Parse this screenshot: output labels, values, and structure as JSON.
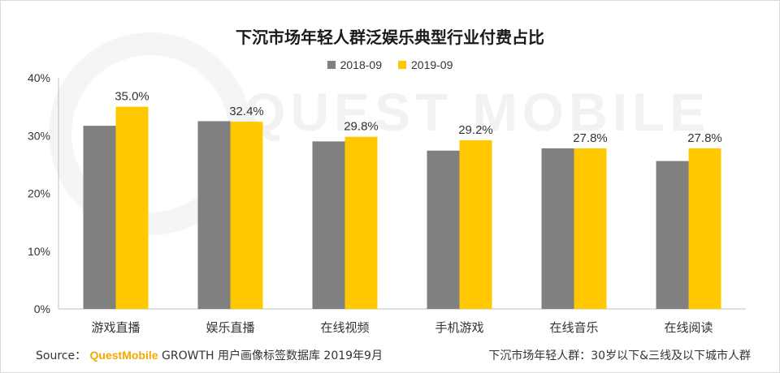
{
  "title": "下沉市场年轻人群泛娱乐典型行业付费占比",
  "watermark": "QUEST MOBILE",
  "colors": {
    "series1": "#808080",
    "series2": "#ffc800",
    "axis": "#bfbfbf"
  },
  "chart_data": {
    "type": "bar",
    "title": "下沉市场年轻人群泛娱乐典型行业付费占比",
    "categories": [
      "游戏直播",
      "娱乐直播",
      "在线视频",
      "手机游戏",
      "在线音乐",
      "在线阅读"
    ],
    "series": [
      {
        "name": "2018-09",
        "values": [
          31.7,
          32.5,
          29.0,
          27.4,
          27.8,
          25.6
        ]
      },
      {
        "name": "2019-09",
        "values": [
          35.0,
          32.4,
          29.8,
          29.2,
          27.8,
          27.8
        ]
      }
    ],
    "data_labels": [
      "35.0%",
      "32.4%",
      "29.8%",
      "29.2%",
      "27.8%",
      "27.8%"
    ],
    "ylim": [
      0,
      40
    ],
    "yticks": [
      "0%",
      "10%",
      "20%",
      "30%",
      "40%"
    ],
    "xlabel": "",
    "ylabel": "",
    "grid": false,
    "legend_position": "top"
  },
  "footer": {
    "source_label": "Source：",
    "brand": "QuestMobile",
    "source_text": "GROWTH 用户画像标签数据库  2019年9月",
    "note": "下沉市场年轻人群：30岁以下&三线及以下城市人群"
  }
}
